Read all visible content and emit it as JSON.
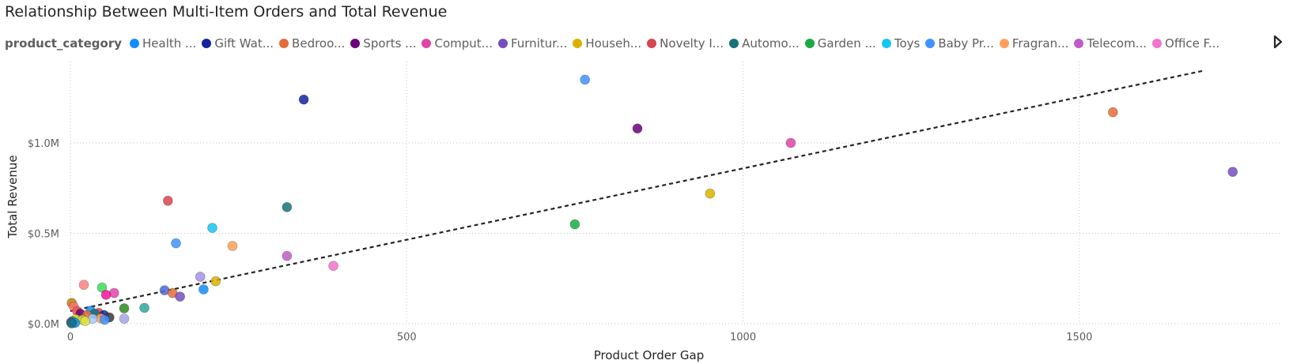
{
  "title": "Relationship Between Multi-Item Orders and Total Revenue",
  "legend": {
    "title": "product_category",
    "items": [
      {
        "label": "Health ...",
        "color": "#118DFF"
      },
      {
        "label": "Gift Wat...",
        "color": "#12239E"
      },
      {
        "label": "Bedroo...",
        "color": "#E66C37"
      },
      {
        "label": "Sports ...",
        "color": "#6B007B"
      },
      {
        "label": "Comput...",
        "color": "#E044A7"
      },
      {
        "label": "Furnitur...",
        "color": "#744EC2"
      },
      {
        "label": "Househ...",
        "color": "#D9B300"
      },
      {
        "label": "Novelty I...",
        "color": "#D64550"
      },
      {
        "label": "Automo...",
        "color": "#197278"
      },
      {
        "label": "Garden ...",
        "color": "#1AAB40"
      },
      {
        "label": "Toys",
        "color": "#15C6F4"
      },
      {
        "label": "Baby Pr...",
        "color": "#4092FF"
      },
      {
        "label": "Fragran...",
        "color": "#FFA058"
      },
      {
        "label": "Telecom...",
        "color": "#BE5DC9"
      },
      {
        "label": "Office F...",
        "color": "#F472D0"
      }
    ]
  },
  "chart_data": {
    "type": "scatter",
    "title": "Relationship Between Multi-Item Orders and Total Revenue",
    "xlabel": "Product Order Gap",
    "ylabel": "Total Revenue",
    "xlim": [
      0,
      1800
    ],
    "ylim": [
      0,
      1450000
    ],
    "x_ticks": [
      0,
      500,
      1000,
      1500
    ],
    "x_tick_labels": [
      "0",
      "500",
      "1000",
      "1500"
    ],
    "y_ticks": [
      0,
      500000,
      1000000
    ],
    "y_tick_labels": [
      "$0.0M",
      "$0.5M",
      "$1.0M"
    ],
    "grid": true,
    "legend_position": "top",
    "trend_line": {
      "style": "dashed",
      "color": "#252423",
      "start": [
        0,
        70000
      ],
      "end": [
        1685,
        1400000
      ]
    },
    "points": [
      {
        "x": 765,
        "y": 1350000,
        "color": "#4092FF"
      },
      {
        "x": 347,
        "y": 1240000,
        "color": "#12239E"
      },
      {
        "x": 1550,
        "y": 1170000,
        "color": "#E66C37"
      },
      {
        "x": 843,
        "y": 1080000,
        "color": "#6B007B"
      },
      {
        "x": 1071,
        "y": 1000000,
        "color": "#E044A7"
      },
      {
        "x": 1728,
        "y": 840000,
        "color": "#744EC2"
      },
      {
        "x": 951,
        "y": 720000,
        "color": "#D9B300"
      },
      {
        "x": 145,
        "y": 680000,
        "color": "#D64550"
      },
      {
        "x": 322,
        "y": 645000,
        "color": "#197278"
      },
      {
        "x": 750,
        "y": 550000,
        "color": "#1AAB40"
      },
      {
        "x": 211,
        "y": 530000,
        "color": "#15C6F4"
      },
      {
        "x": 157,
        "y": 445000,
        "color": "#4092FF"
      },
      {
        "x": 241,
        "y": 430000,
        "color": "#FFA058"
      },
      {
        "x": 322,
        "y": 375000,
        "color": "#BE5DC9"
      },
      {
        "x": 391,
        "y": 320000,
        "color": "#F472D0"
      },
      {
        "x": 193,
        "y": 260000,
        "color": "#A591E8"
      },
      {
        "x": 216,
        "y": 235000,
        "color": "#D9B300"
      },
      {
        "x": 20,
        "y": 215000,
        "color": "#FF8080"
      },
      {
        "x": 47,
        "y": 200000,
        "color": "#3BDB5A"
      },
      {
        "x": 140,
        "y": 185000,
        "color": "#4A6BD4"
      },
      {
        "x": 198,
        "y": 190000,
        "color": "#118DFF"
      },
      {
        "x": 152,
        "y": 170000,
        "color": "#E66C37"
      },
      {
        "x": 65,
        "y": 170000,
        "color": "#E044A7"
      },
      {
        "x": 53,
        "y": 160000,
        "color": "#F5119A"
      },
      {
        "x": 163,
        "y": 150000,
        "color": "#744EC2"
      },
      {
        "x": 2,
        "y": 115000,
        "color": "#B8860B"
      },
      {
        "x": 5,
        "y": 95000,
        "color": "#FF7070"
      },
      {
        "x": 110,
        "y": 88000,
        "color": "#2EA89C"
      },
      {
        "x": 80,
        "y": 85000,
        "color": "#2E8B20"
      },
      {
        "x": 10,
        "y": 70000,
        "color": "#E05A50"
      },
      {
        "x": 30,
        "y": 72000,
        "color": "#118DFF"
      },
      {
        "x": 42,
        "y": 60000,
        "color": "#D64550"
      },
      {
        "x": 15,
        "y": 55000,
        "color": "#6B007B"
      },
      {
        "x": 36,
        "y": 55000,
        "color": "#197278"
      },
      {
        "x": 50,
        "y": 48000,
        "color": "#12239E"
      },
      {
        "x": 25,
        "y": 48000,
        "color": "#E66C37"
      },
      {
        "x": 58,
        "y": 35000,
        "color": "#3A3A3A"
      },
      {
        "x": 45,
        "y": 30000,
        "color": "#FFA058"
      },
      {
        "x": 33,
        "y": 28000,
        "color": "#A5C8FF"
      },
      {
        "x": 80,
        "y": 28000,
        "color": "#A5A5E8"
      },
      {
        "x": 8,
        "y": 25000,
        "color": "#E8E030"
      },
      {
        "x": 18,
        "y": 22000,
        "color": "#CBE030"
      },
      {
        "x": 51,
        "y": 22000,
        "color": "#4092FF"
      },
      {
        "x": 3,
        "y": 15000,
        "color": "#1AAB40"
      },
      {
        "x": 22,
        "y": 15000,
        "color": "#D9E040"
      },
      {
        "x": 1,
        "y": 8000,
        "color": "#744EC2"
      },
      {
        "x": 7,
        "y": 5000,
        "color": "#118DFF"
      },
      {
        "x": 2,
        "y": 2000,
        "color": "#197278"
      }
    ]
  }
}
